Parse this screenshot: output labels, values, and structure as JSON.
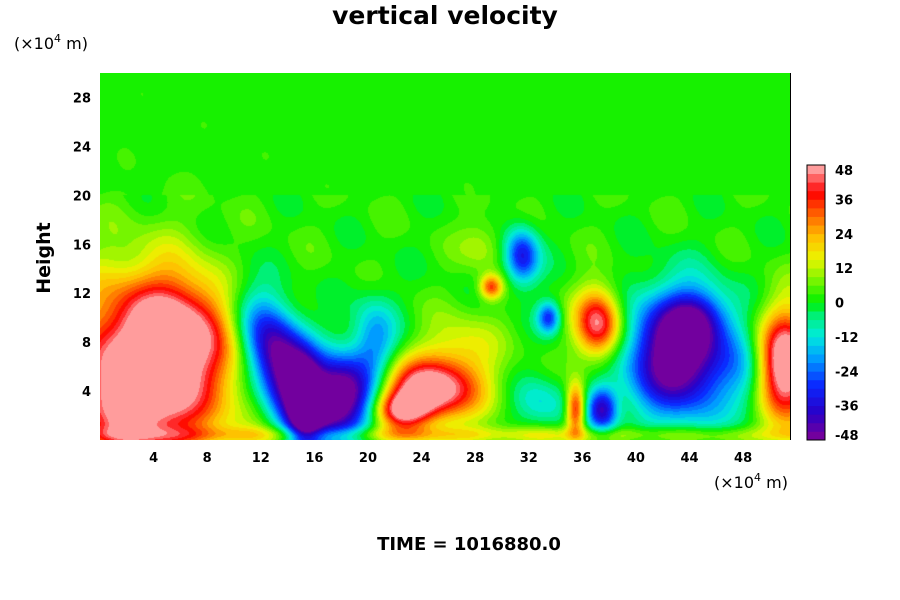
{
  "chart_data": {
    "type": "heatmap",
    "title": "vertical velocity",
    "ylabel": "Height",
    "xlabel": "",
    "x_unit": {
      "prefix": "(×10",
      "exponent": "4",
      "suffix": " m)"
    },
    "y_unit": {
      "prefix": "(×10",
      "exponent": "4",
      "suffix": " m)"
    },
    "xlim": [
      0,
      51.5
    ],
    "ylim": [
      0,
      30
    ],
    "x_ticks": [
      4,
      8,
      12,
      16,
      20,
      24,
      28,
      32,
      36,
      40,
      44,
      48
    ],
    "y_ticks": [
      4,
      8,
      12,
      16,
      20,
      24,
      28
    ],
    "colorbar": {
      "min": -48,
      "max": 48,
      "ticks": [
        48,
        36,
        24,
        12,
        0,
        -12,
        -24,
        -36,
        -48
      ],
      "levels": 32,
      "colormap": "rainbow: purple (-48) → blue → cyan → green (0) → yellow → orange → red → pink (48)"
    },
    "time_label": "TIME = 1016880.0",
    "background_field_value": 2,
    "features": [
      {
        "x": 4.0,
        "y": 6.5,
        "sx": 4.2,
        "sy": 5.0,
        "value": 56
      },
      {
        "x": 2.0,
        "y": 3.0,
        "sx": 2.8,
        "sy": 2.6,
        "value": 20
      },
      {
        "x": 6.0,
        "y": 9.5,
        "sx": 2.5,
        "sy": 2.5,
        "value": 16
      },
      {
        "x": 14.0,
        "y": 5.5,
        "sx": 1.8,
        "sy": 4.0,
        "value": -64,
        "tilt": -0.35
      },
      {
        "x": 15.3,
        "y": 2.5,
        "sx": 0.8,
        "sy": 2.5,
        "value": -30
      },
      {
        "x": 18.3,
        "y": 3.7,
        "sx": 1.6,
        "sy": 2.2,
        "value": -55
      },
      {
        "x": 20.5,
        "y": 8.0,
        "sx": 1.2,
        "sy": 2.5,
        "value": -22
      },
      {
        "x": 24.5,
        "y": 4.0,
        "sx": 2.6,
        "sy": 1.8,
        "value": 54
      },
      {
        "x": 22.5,
        "y": 2.4,
        "sx": 1.4,
        "sy": 1.0,
        "value": 30
      },
      {
        "x": 27.0,
        "y": 7.5,
        "sx": 2.0,
        "sy": 2.0,
        "value": 14
      },
      {
        "x": 29.2,
        "y": 12.5,
        "sx": 0.6,
        "sy": 0.7,
        "value": 32
      },
      {
        "x": 28.5,
        "y": 16.0,
        "sx": 1.2,
        "sy": 1.5,
        "value": 10
      },
      {
        "x": 31.5,
        "y": 15.0,
        "sx": 0.9,
        "sy": 1.6,
        "value": -36
      },
      {
        "x": 33.5,
        "y": 10.0,
        "sx": 0.6,
        "sy": 0.9,
        "value": -30
      },
      {
        "x": 33.0,
        "y": 3.0,
        "sx": 1.5,
        "sy": 1.5,
        "value": -14
      },
      {
        "x": 35.5,
        "y": 2.5,
        "sx": 0.5,
        "sy": 1.5,
        "value": 40
      },
      {
        "x": 37.2,
        "y": 9.5,
        "sx": 1.2,
        "sy": 2.0,
        "value": 46
      },
      {
        "x": 37.5,
        "y": 2.5,
        "sx": 0.8,
        "sy": 1.3,
        "value": -40
      },
      {
        "x": 43.2,
        "y": 7.0,
        "sx": 2.6,
        "sy": 3.4,
        "value": -62
      },
      {
        "x": 44.5,
        "y": 10.0,
        "sx": 1.5,
        "sy": 1.5,
        "value": -20
      },
      {
        "x": 51.2,
        "y": 6.0,
        "sx": 1.5,
        "sy": 3.2,
        "value": 58
      },
      {
        "x": 48.5,
        "y": 5.0,
        "sx": 1.3,
        "sy": 2.5,
        "value": -12
      },
      {
        "x": 25.0,
        "y": 0.4,
        "sx": 30.0,
        "sy": 0.5,
        "value": 14
      }
    ]
  }
}
